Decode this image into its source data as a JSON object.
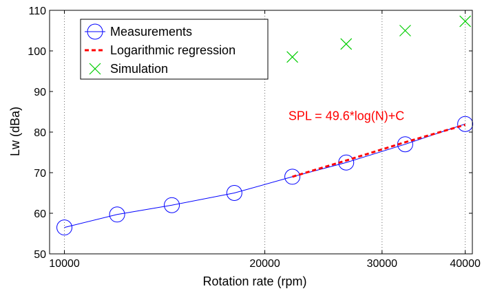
{
  "chart_data": {
    "type": "line",
    "xlabel": "Rotation rate (rpm)",
    "ylabel": "Lw (dBa)",
    "x_scale": "log",
    "xlim": [
      9500,
      41000
    ],
    "ylim": [
      50,
      110
    ],
    "x_ticks": [
      10000,
      20000,
      30000,
      40000
    ],
    "x_tick_labels": [
      "10000",
      "20000",
      "30000",
      "40000"
    ],
    "y_ticks": [
      50,
      60,
      70,
      80,
      90,
      100,
      110
    ],
    "y_tick_labels": [
      "50",
      "60",
      "70",
      "80",
      "90",
      "100",
      "110"
    ],
    "grid": "vertical dotted lines at x ticks",
    "legend_position": "top-left",
    "annotation": {
      "text": "SPL = 49.6*log(N)+C",
      "x": 21700,
      "y": 83,
      "color": "#ff0000"
    },
    "series": [
      {
        "name": "Measurements",
        "style": "line-circle",
        "color": "#0000ff",
        "x": [
          10000,
          12000,
          14500,
          18000,
          22000,
          26500,
          32500,
          40000
        ],
        "y": [
          56.5,
          59.7,
          62.0,
          65.0,
          69.0,
          72.5,
          77.0,
          82.0
        ]
      },
      {
        "name": "Logarithmic regression",
        "style": "dashed",
        "color": "#ff0000",
        "x": [
          22000,
          26500,
          32500,
          40000
        ],
        "y": [
          69.0,
          73.0,
          77.5,
          81.8
        ]
      },
      {
        "name": "Simulation",
        "style": "cross",
        "color": "#00cc00",
        "x": [
          22000,
          26500,
          32500,
          40000
        ],
        "y": [
          98.5,
          101.7,
          105.0,
          107.3
        ]
      }
    ]
  }
}
